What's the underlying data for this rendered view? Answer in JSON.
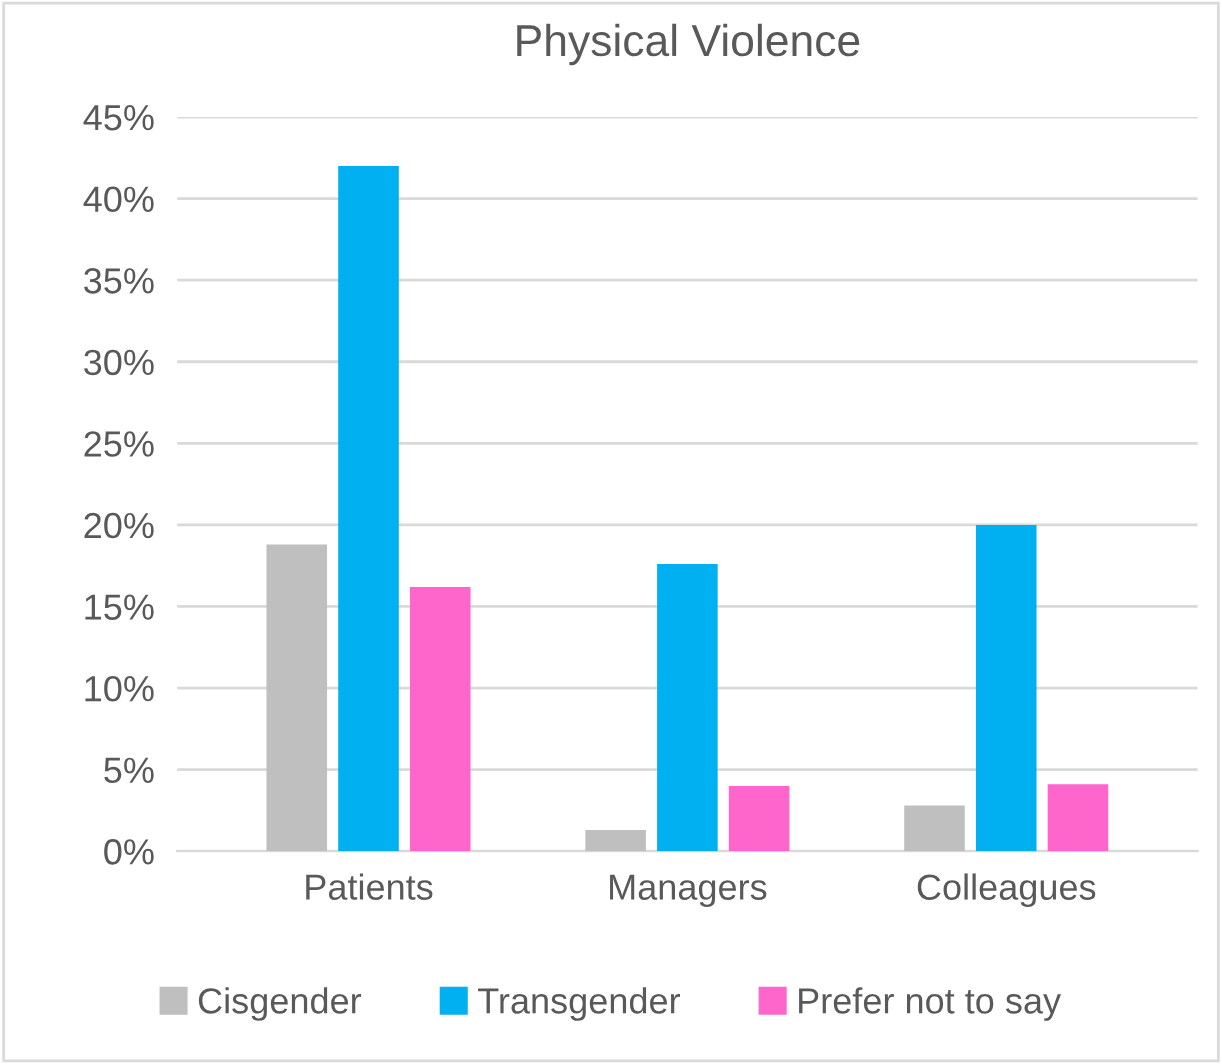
{
  "chart_data": {
    "type": "bar",
    "title": "Physical Violence",
    "categories": [
      "Patients",
      "Managers",
      "Colleagues"
    ],
    "series": [
      {
        "name": "Cisgender",
        "color": "#bfbfbf",
        "values": [
          18.8,
          1.3,
          2.8
        ]
      },
      {
        "name": "Transgender",
        "color": "#00b0f0",
        "values": [
          42,
          17.6,
          20
        ]
      },
      {
        "name": "Prefer not to say",
        "color": "#ff66cc",
        "values": [
          16.2,
          4.0,
          4.1
        ]
      }
    ],
    "ylim": [
      0,
      45
    ],
    "yticks": [
      {
        "value": 0,
        "label": "0%"
      },
      {
        "value": 5,
        "label": "5%"
      },
      {
        "value": 10,
        "label": "10%"
      },
      {
        "value": 15,
        "label": "15%"
      },
      {
        "value": 20,
        "label": "20%"
      },
      {
        "value": 25,
        "label": "25%"
      },
      {
        "value": 30,
        "label": "30%"
      },
      {
        "value": 35,
        "label": "35%"
      },
      {
        "value": 40,
        "label": "40%"
      },
      {
        "value": 45,
        "label": "45%"
      }
    ],
    "grid": "y",
    "legend": "bottom"
  }
}
